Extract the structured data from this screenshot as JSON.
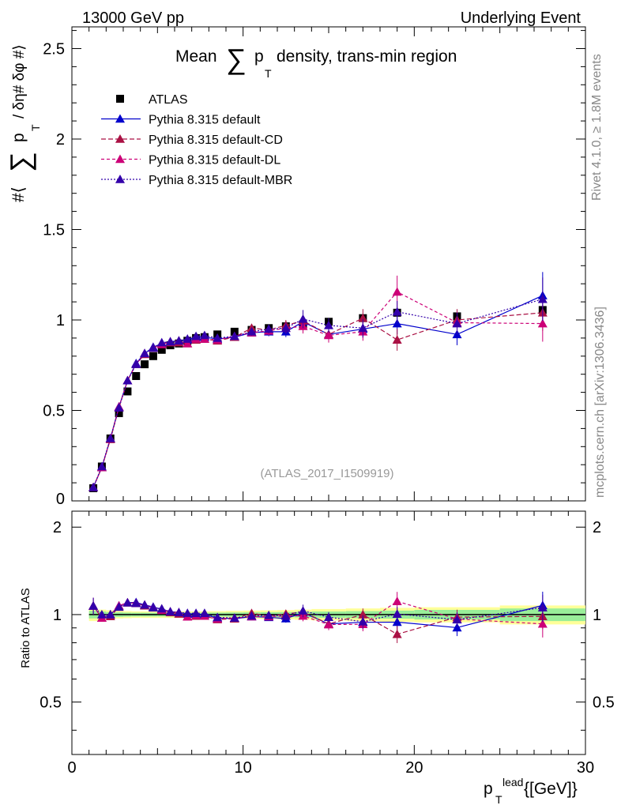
{
  "header": {
    "left": "13000 GeV pp",
    "right": "Underlying Event"
  },
  "side_labels": {
    "rivet": "Rivet 4.1.0, ≥ 1.8M events",
    "mcplots": "mcplots.cern.ch [arXiv:1306.3436]"
  },
  "chart_data": {
    "type": "scatter",
    "title_main": "Mean",
    "title_sum": "∑",
    "title_p": "p",
    "title_sub": "T",
    "title_rest": "density, trans-min region",
    "watermark": "(ATLAS_2017_I1509919)",
    "ylabel_prefix": "#⟨",
    "ylabel_sum": "∑",
    "ylabel_p": "p",
    "ylabel_sub": "T",
    "ylabel_rest": "/ δη# δφ #⟩",
    "ratio_ylabel": "Ratio to ATLAS",
    "xlabel_p": "p",
    "xlabel_sup": "lead",
    "xlabel_sub": "T",
    "xlabel_unit": "{[GeV]}",
    "xlim": [
      0,
      30
    ],
    "ylim": [
      0,
      2.62
    ],
    "ratio_ylim": [
      0.33,
      2.27
    ],
    "xticks": [
      0,
      10,
      20,
      30
    ],
    "yticks": [
      0.5,
      1,
      1.5,
      2,
      2.5
    ],
    "ytick_labels": [
      "0.5",
      "1",
      "1.5",
      "2",
      "2.5"
    ],
    "y0_label": "0",
    "ratio_yticks": [
      0.5,
      1,
      2
    ],
    "ratio_ytick_labels": [
      "0.5",
      "1",
      "2"
    ],
    "x": [
      1.25,
      1.75,
      2.25,
      2.75,
      3.25,
      3.75,
      4.25,
      4.75,
      5.25,
      5.75,
      6.25,
      6.75,
      7.25,
      7.75,
      8.5,
      9.5,
      10.5,
      11.5,
      12.5,
      13.5,
      15,
      17,
      19,
      22.5,
      27.5
    ],
    "data": {
      "name": "ATLAS",
      "values": [
        0.07,
        0.19,
        0.345,
        0.485,
        0.605,
        0.69,
        0.755,
        0.8,
        0.835,
        0.86,
        0.87,
        0.885,
        0.9,
        0.905,
        0.92,
        0.935,
        0.945,
        0.955,
        0.965,
        0.975,
        0.99,
        1.01,
        1.04,
        1.02,
        1.055
      ]
    },
    "band_edges": [
      1,
      1.5,
      2,
      2.5,
      3,
      3.5,
      4,
      4.5,
      5,
      5.5,
      6,
      6.5,
      7,
      7.5,
      8,
      9,
      10,
      11,
      12,
      13,
      14,
      16,
      18,
      20,
      25,
      30
    ],
    "band_inner": [
      0.03,
      0.025,
      0.02,
      0.018,
      0.016,
      0.015,
      0.015,
      0.015,
      0.015,
      0.015,
      0.015,
      0.015,
      0.015,
      0.015,
      0.016,
      0.017,
      0.018,
      0.019,
      0.02,
      0.022,
      0.025,
      0.028,
      0.032,
      0.038,
      0.05
    ],
    "band_outer": [
      0.05,
      0.04,
      0.035,
      0.03,
      0.028,
      0.026,
      0.026,
      0.026,
      0.026,
      0.026,
      0.026,
      0.026,
      0.026,
      0.026,
      0.028,
      0.03,
      0.032,
      0.034,
      0.036,
      0.04,
      0.045,
      0.05,
      0.055,
      0.06,
      0.075
    ],
    "series": [
      {
        "name": "Pythia 8.315 default",
        "color": "#0000cc",
        "dash": "",
        "values": [
          0.075,
          0.185,
          0.345,
          0.52,
          0.665,
          0.76,
          0.815,
          0.85,
          0.87,
          0.88,
          0.885,
          0.89,
          0.905,
          0.905,
          0.895,
          0.905,
          0.93,
          0.935,
          0.935,
          0.99,
          0.92,
          0.95,
          0.98,
          0.92,
          1.135
        ],
        "errors": [
          0.005,
          0.005,
          0.008,
          0.01,
          0.012,
          0.012,
          0.012,
          0.012,
          0.012,
          0.012,
          0.014,
          0.014,
          0.016,
          0.016,
          0.018,
          0.02,
          0.022,
          0.025,
          0.03,
          0.04,
          0.04,
          0.05,
          0.06,
          0.06,
          0.13
        ]
      },
      {
        "name": "Pythia 8.315 default-CD",
        "color": "#aa1144",
        "dash": "6,3",
        "values": [
          0.075,
          0.185,
          0.34,
          0.515,
          0.665,
          0.755,
          0.81,
          0.845,
          0.87,
          0.875,
          0.875,
          0.87,
          0.89,
          0.895,
          0.885,
          0.905,
          0.955,
          0.945,
          0.97,
          0.995,
          0.92,
          1.01,
          0.89,
          1.0,
          1.04
        ],
        "errors": [
          0.005,
          0.005,
          0.008,
          0.01,
          0.012,
          0.012,
          0.012,
          0.012,
          0.012,
          0.012,
          0.014,
          0.014,
          0.016,
          0.016,
          0.018,
          0.02,
          0.022,
          0.025,
          0.03,
          0.04,
          0.04,
          0.05,
          0.06,
          0.06,
          0.1
        ]
      },
      {
        "name": "Pythia 8.315 default-DL",
        "color": "#cc0077",
        "dash": "4,3",
        "values": [
          0.075,
          0.185,
          0.345,
          0.52,
          0.665,
          0.755,
          0.815,
          0.845,
          0.865,
          0.88,
          0.885,
          0.87,
          0.895,
          0.895,
          0.89,
          0.91,
          0.93,
          0.94,
          0.955,
          0.965,
          0.915,
          0.935,
          1.155,
          0.985,
          0.98
        ],
        "errors": [
          0.005,
          0.005,
          0.008,
          0.01,
          0.012,
          0.012,
          0.012,
          0.012,
          0.012,
          0.012,
          0.014,
          0.014,
          0.016,
          0.016,
          0.018,
          0.02,
          0.022,
          0.025,
          0.03,
          0.04,
          0.04,
          0.05,
          0.09,
          0.06,
          0.1
        ]
      },
      {
        "name": "Pythia 8.315 default-MBR",
        "color": "#3300aa",
        "dash": "2,2",
        "values": [
          0.075,
          0.19,
          0.345,
          0.515,
          0.665,
          0.755,
          0.815,
          0.845,
          0.875,
          0.88,
          0.885,
          0.895,
          0.91,
          0.915,
          0.9,
          0.91,
          0.935,
          0.95,
          0.955,
          1.005,
          0.97,
          0.955,
          1.045,
          0.98,
          1.115
        ],
        "errors": [
          0.005,
          0.005,
          0.008,
          0.01,
          0.012,
          0.012,
          0.012,
          0.012,
          0.012,
          0.012,
          0.014,
          0.014,
          0.016,
          0.016,
          0.018,
          0.02,
          0.022,
          0.025,
          0.03,
          0.05,
          0.04,
          0.05,
          0.06,
          0.06,
          0.12
        ]
      }
    ]
  }
}
